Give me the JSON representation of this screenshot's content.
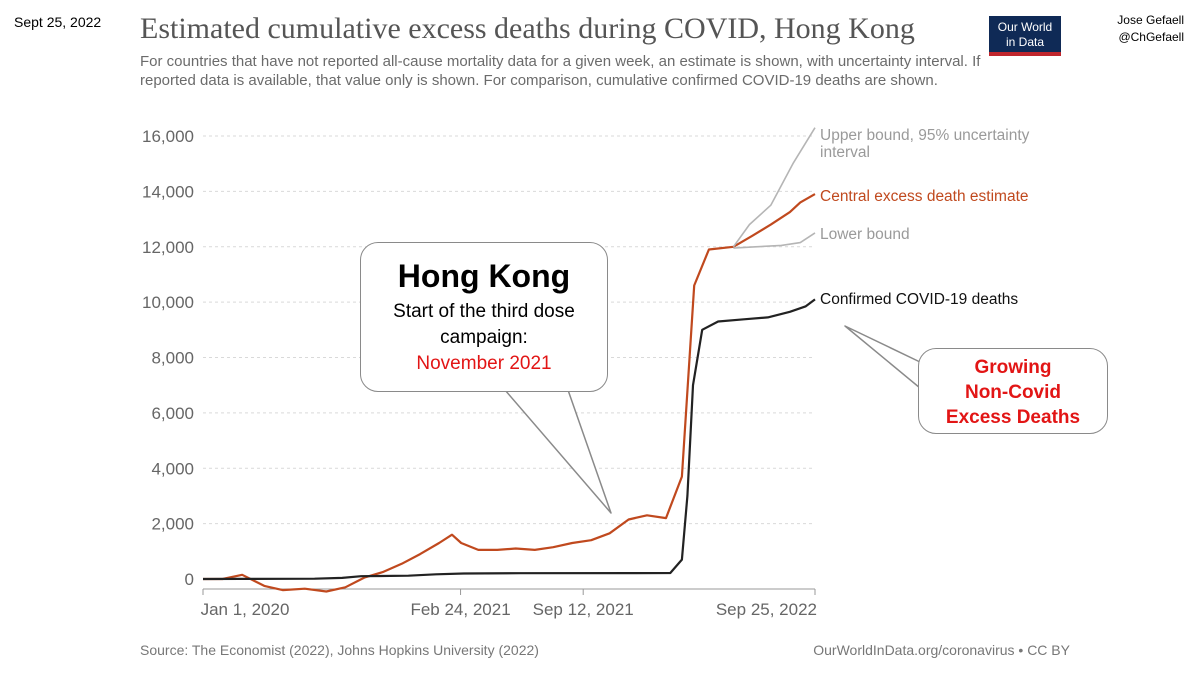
{
  "header": {
    "date_stamp": "Sept 25, 2022",
    "author_name": "Jose Gefaell",
    "author_handle": "@ChGefaell",
    "logo_line1": "Our World",
    "logo_line2": "in Data"
  },
  "callouts": {
    "main_heading": "Hong Kong",
    "main_line1": "Start of the third dose",
    "main_line2": "campaign:",
    "main_date": "November 2021",
    "right_line1": "Growing",
    "right_line2": "Non-Covid",
    "right_line3": "Excess Deaths"
  },
  "footer": {
    "source": "Source: The Economist (2022), Johns Hopkins University (2022)",
    "link": "OurWorldInData.org/coronavirus • CC BY"
  },
  "colors": {
    "central": "#c0491e",
    "bound": "#b5b5b5",
    "confirmed": "#222222",
    "grid": "#d9d9d9"
  },
  "chart_data": {
    "type": "line",
    "title": "Estimated cumulative excess deaths during COVID, Hong Kong",
    "subtitle": "For countries that have not reported all-cause mortality data for a given week, an estimate is shown, with uncertainty interval. If reported data is available, that value only is shown. For comparison, cumulative confirmed COVID-19 deaths are shown.",
    "xlabel": "",
    "ylabel": "",
    "x_range": [
      "2020-01-01",
      "2022-09-25"
    ],
    "x_ticks": [
      {
        "date": "2020-01-01",
        "label": "Jan 1, 2020"
      },
      {
        "date": "2021-02-24",
        "label": "Feb 24, 2021"
      },
      {
        "date": "2021-09-12",
        "label": "Sep 12, 2021"
      },
      {
        "date": "2022-09-25",
        "label": "Sep 25, 2022"
      }
    ],
    "ylim": [
      0,
      16000
    ],
    "y_ticks": [
      0,
      2000,
      4000,
      6000,
      8000,
      10000,
      12000,
      14000,
      16000
    ],
    "y_tick_labels": [
      "0",
      "2,000",
      "4,000",
      "6,000",
      "8,000",
      "10,000",
      "12,000",
      "14,000",
      "16,000"
    ],
    "grid": true,
    "series": [
      {
        "name": "Central excess death estimate",
        "key": "central",
        "points": [
          [
            "2020-01-01",
            0
          ],
          [
            "2020-02-02",
            0
          ],
          [
            "2020-03-05",
            150
          ],
          [
            "2020-04-10",
            -250
          ],
          [
            "2020-05-10",
            -400
          ],
          [
            "2020-06-15",
            -350
          ],
          [
            "2020-07-20",
            -450
          ],
          [
            "2020-08-20",
            -300
          ],
          [
            "2020-09-20",
            50
          ],
          [
            "2020-10-20",
            250
          ],
          [
            "2020-11-20",
            550
          ],
          [
            "2020-12-20",
            900
          ],
          [
            "2021-01-20",
            1300
          ],
          [
            "2021-02-10",
            1600
          ],
          [
            "2021-02-25",
            1300
          ],
          [
            "2021-03-25",
            1050
          ],
          [
            "2021-04-25",
            1050
          ],
          [
            "2021-05-25",
            1100
          ],
          [
            "2021-06-25",
            1050
          ],
          [
            "2021-07-25",
            1150
          ],
          [
            "2021-08-25",
            1300
          ],
          [
            "2021-09-25",
            1400
          ],
          [
            "2021-10-25",
            1650
          ],
          [
            "2021-11-25",
            2150
          ],
          [
            "2021-12-25",
            2300
          ],
          [
            "2022-01-25",
            2200
          ],
          [
            "2022-02-20",
            3700
          ],
          [
            "2022-03-12",
            10600
          ],
          [
            "2022-04-05",
            11900
          ],
          [
            "2022-05-15",
            12000
          ],
          [
            "2022-06-15",
            12400
          ],
          [
            "2022-07-15",
            12800
          ],
          [
            "2022-08-15",
            13250
          ],
          [
            "2022-09-01",
            13600
          ],
          [
            "2022-09-25",
            13900
          ]
        ]
      },
      {
        "name": "Upper bound, 95% uncertainty interval",
        "key": "bound",
        "points": [
          [
            "2022-05-15",
            12000
          ],
          [
            "2022-06-10",
            12800
          ],
          [
            "2022-07-15",
            13500
          ],
          [
            "2022-08-20",
            15000
          ],
          [
            "2022-09-25",
            16300
          ]
        ]
      },
      {
        "name": "Lower bound",
        "key": "bound",
        "points": [
          [
            "2022-05-15",
            11950
          ],
          [
            "2022-06-20",
            12000
          ],
          [
            "2022-08-01",
            12050
          ],
          [
            "2022-09-01",
            12150
          ],
          [
            "2022-09-25",
            12500
          ]
        ]
      },
      {
        "name": "Confirmed COVID-19 deaths",
        "key": "confirmed",
        "points": [
          [
            "2020-01-01",
            0
          ],
          [
            "2020-03-01",
            5
          ],
          [
            "2020-07-01",
            10
          ],
          [
            "2020-08-15",
            40
          ],
          [
            "2020-09-15",
            100
          ],
          [
            "2020-12-01",
            120
          ],
          [
            "2021-01-15",
            170
          ],
          [
            "2021-03-01",
            200
          ],
          [
            "2021-06-01",
            210
          ],
          [
            "2021-12-01",
            213
          ],
          [
            "2022-02-01",
            215
          ],
          [
            "2022-02-20",
            700
          ],
          [
            "2022-03-01",
            3000
          ],
          [
            "2022-03-10",
            7000
          ],
          [
            "2022-03-25",
            9000
          ],
          [
            "2022-04-20",
            9300
          ],
          [
            "2022-06-01",
            9380
          ],
          [
            "2022-07-10",
            9450
          ],
          [
            "2022-08-15",
            9650
          ],
          [
            "2022-09-10",
            9850
          ],
          [
            "2022-09-25",
            10100
          ]
        ]
      }
    ],
    "series_labels": [
      {
        "text": "Upper bound, 95% uncertainty interval",
        "lines": [
          "Upper bound, 95% uncertainty",
          "interval"
        ],
        "key": "bound"
      },
      {
        "text": "Central excess death estimate",
        "lines": [
          "Central excess death estimate"
        ],
        "key": "central"
      },
      {
        "text": "Lower bound",
        "lines": [
          "Lower bound"
        ],
        "key": "bound"
      },
      {
        "text": "Confirmed COVID-19 deaths",
        "lines": [
          "Confirmed COVID-19 deaths"
        ],
        "key": "confirmed"
      }
    ]
  }
}
